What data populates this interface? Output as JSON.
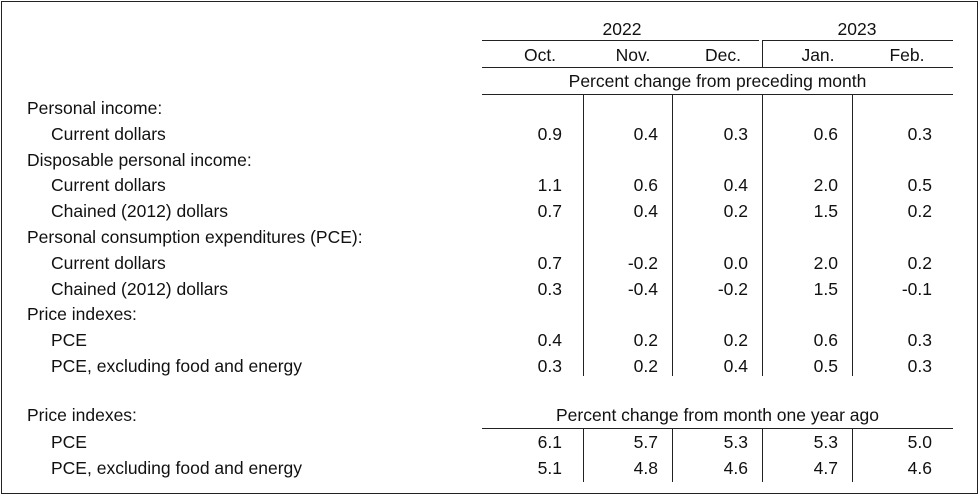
{
  "header": {
    "years": [
      "2022",
      "2023"
    ],
    "months": [
      "Oct.",
      "Nov.",
      "Dec.",
      "Jan.",
      "Feb."
    ],
    "unit_monthly": "Percent change from preceding month",
    "unit_yearly": "Percent change from month one year ago"
  },
  "rows": [
    {
      "label": "Personal income:",
      "indent": 0,
      "values": []
    },
    {
      "label": "Current dollars",
      "indent": 1,
      "values": [
        "0.9",
        "0.4",
        "0.3",
        "0.6",
        "0.3"
      ]
    },
    {
      "label": "Disposable personal income:",
      "indent": 0,
      "values": []
    },
    {
      "label": "Current dollars",
      "indent": 1,
      "values": [
        "1.1",
        "0.6",
        "0.4",
        "2.0",
        "0.5"
      ]
    },
    {
      "label": "Chained (2012) dollars",
      "indent": 1,
      "values": [
        "0.7",
        "0.4",
        "0.2",
        "1.5",
        "0.2"
      ]
    },
    {
      "label": "Personal consumption expenditures (PCE):",
      "indent": 0,
      "values": []
    },
    {
      "label": "Current dollars",
      "indent": 1,
      "values": [
        "0.7",
        "-0.2",
        "0.0",
        "2.0",
        "0.2"
      ]
    },
    {
      "label": "Chained (2012) dollars",
      "indent": 1,
      "values": [
        "0.3",
        "-0.4",
        "-0.2",
        "1.5",
        "-0.1"
      ]
    },
    {
      "label": "Price indexes:",
      "indent": 0,
      "values": []
    },
    {
      "label": "PCE",
      "indent": 1,
      "values": [
        "0.4",
        "0.2",
        "0.2",
        "0.6",
        "0.3"
      ]
    },
    {
      "label": "PCE, excluding food and energy",
      "indent": 1,
      "values": [
        "0.3",
        "0.2",
        "0.4",
        "0.5",
        "0.3"
      ]
    }
  ],
  "yearly_section_label": "Price indexes:",
  "yearly_rows": [
    {
      "label": "PCE",
      "indent": 1,
      "values": [
        "6.1",
        "5.7",
        "5.3",
        "5.3",
        "5.0"
      ]
    },
    {
      "label": "PCE, excluding food and energy",
      "indent": 1,
      "values": [
        "5.1",
        "4.8",
        "4.6",
        "4.7",
        "4.6"
      ]
    }
  ]
}
